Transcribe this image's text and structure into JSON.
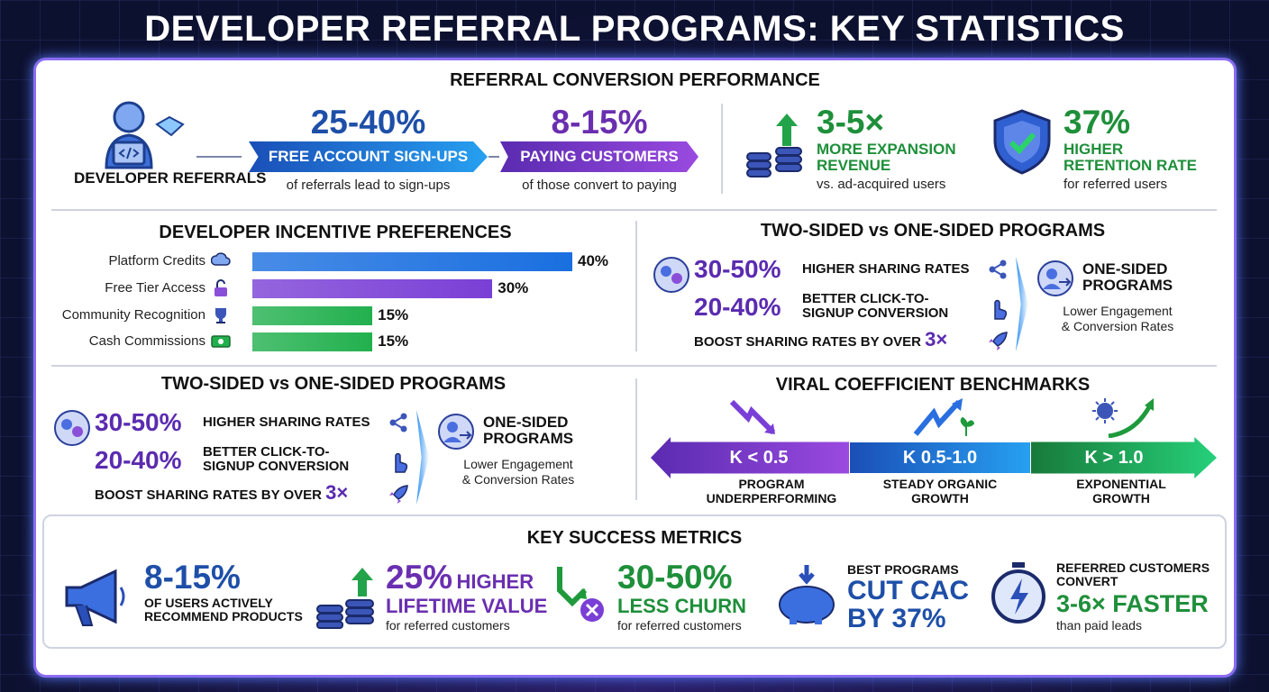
{
  "title": "DEVELOPER REFERRAL PROGRAMS: KEY STATISTICS",
  "colors": {
    "blue": "#1e5cc8",
    "purple": "#6a2fc0",
    "green": "#1e9a3c",
    "background": "#0d1130"
  },
  "conversion": {
    "heading": "REFERRAL CONVERSION PERFORMANCE",
    "source_label": "DEVELOPER REFERRALS",
    "step1": {
      "value": "25-40%",
      "label": "FREE ACCOUNT SIGN-UPS",
      "note": "of referrals lead to sign-ups"
    },
    "step2": {
      "value": "8-15%",
      "label": "PAYING CUSTOMERS",
      "note": "of those convert to paying"
    },
    "expansion": {
      "value": "3-5×",
      "label_line1": "MORE EXPANSION",
      "label_line2": "REVENUE",
      "note": "vs. ad-acquired users"
    },
    "retention": {
      "value": "37%",
      "label_line1": "HIGHER",
      "label_line2": "RETENTION RATE",
      "note": "for referred users"
    }
  },
  "incentives": {
    "heading": "DEVELOPER INCENTIVE PREFERENCES",
    "chart_data": {
      "type": "bar",
      "orientation": "horizontal",
      "categories": [
        "Platform Credits",
        "Free Tier Access",
        "Community Recognition",
        "Cash Commissions"
      ],
      "values": [
        40,
        30,
        15,
        15
      ],
      "value_labels": [
        "40%",
        "30%",
        "15%",
        "15%"
      ],
      "colors": [
        "#1a6fe0",
        "#7a3fd6",
        "#22b04e",
        "#22b04e"
      ],
      "xlim": [
        0,
        40
      ]
    }
  },
  "two_sided": {
    "heading": "TWO-SIDED vs ONE-SIDED PROGRAMS",
    "stat1": {
      "value": "30-50%",
      "label": "HIGHER SHARING RATES"
    },
    "stat2": {
      "value": "20-40%",
      "label_line1": "BETTER CLICK-TO-",
      "label_line2": "SIGNUP CONVERSION"
    },
    "boost_text": "BOOST SHARING RATES BY OVER",
    "boost_value": "3×",
    "one_sided_line1": "ONE-SIDED",
    "one_sided_line2": "PROGRAMS",
    "one_sided_note1": "Lower Engagement",
    "one_sided_note2": "& Conversion Rates"
  },
  "viral": {
    "heading": "VIRAL COEFFICIENT BENCHMARKS",
    "tiers": [
      {
        "label": "K < 0.5",
        "desc1": "PROGRAM",
        "desc2": "UNDERPERFORMING"
      },
      {
        "label": "K 0.5-1.0",
        "desc1": "STEADY ORGANIC",
        "desc2": "GROWTH"
      },
      {
        "label": "K > 1.0",
        "desc1": "EXPONENTIAL",
        "desc2": "GROWTH"
      }
    ]
  },
  "metrics": {
    "heading": "KEY SUCCESS METRICS",
    "m1": {
      "value": "8-15%",
      "line1": "OF USERS ACTIVELY",
      "line2": "RECOMMEND PRODUCTS"
    },
    "m2": {
      "value": "25%",
      "suffix": "HIGHER",
      "line1": "LIFETIME VALUE",
      "note": "for referred customers"
    },
    "m3": {
      "value": "30-50%",
      "line1": "LESS CHURN",
      "note": "for referred customers"
    },
    "m4": {
      "pre": "BEST PROGRAMS",
      "line1": "CUT CAC",
      "line2": "BY 37%"
    },
    "m5": {
      "pre1": "REFERRED CUSTOMERS",
      "pre2": "CONVERT",
      "value": "3-6× FASTER",
      "note": "than paid leads"
    }
  }
}
